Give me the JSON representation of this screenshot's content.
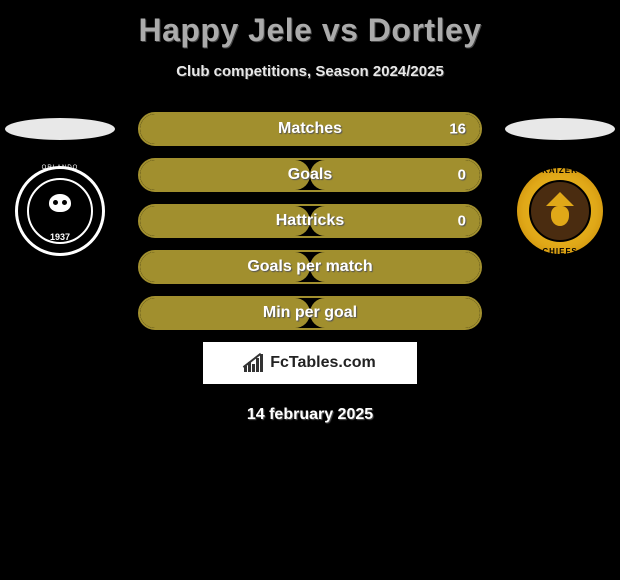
{
  "header": {
    "title": "Happy Jele vs Dortley",
    "subtitle": "Club competitions, Season 2024/2025"
  },
  "players": {
    "left": {
      "club_name_top": "ORLANDO",
      "club_name_bottom": "PIRATES",
      "club_year": "1937",
      "badge_color": "#e8e8e8",
      "primary_color": "#000000",
      "secondary_color": "#ffffff"
    },
    "right": {
      "club_name_top": "KAIZER",
      "club_name_bottom": "CHIEFS",
      "badge_color": "#e8e8e8",
      "primary_color": "#e0a818",
      "secondary_color": "#4a2c10"
    }
  },
  "stats": {
    "bar_color": "#a18f2e",
    "border_color": "#a18f2e",
    "rows": [
      {
        "label": "Matches",
        "left": "",
        "right": "16",
        "left_pct": 0,
        "right_pct": 100
      },
      {
        "label": "Goals",
        "left": "",
        "right": "0",
        "left_pct": 50,
        "right_pct": 50
      },
      {
        "label": "Hattricks",
        "left": "",
        "right": "0",
        "left_pct": 50,
        "right_pct": 50
      },
      {
        "label": "Goals per match",
        "left": "",
        "right": "",
        "left_pct": 50,
        "right_pct": 50
      },
      {
        "label": "Min per goal",
        "left": "",
        "right": "",
        "left_pct": 50,
        "right_pct": 50
      }
    ]
  },
  "attribution": {
    "site": "FcTables.com",
    "icon_bars": [
      {
        "x": 0,
        "h": 6
      },
      {
        "x": 4,
        "h": 10
      },
      {
        "x": 8,
        "h": 8
      },
      {
        "x": 12,
        "h": 14
      },
      {
        "x": 16,
        "h": 18
      }
    ]
  },
  "footer": {
    "date": "14 february 2025"
  },
  "colors": {
    "background": "#000000",
    "title_color": "#ababab",
    "text_color": "#ffffff"
  }
}
